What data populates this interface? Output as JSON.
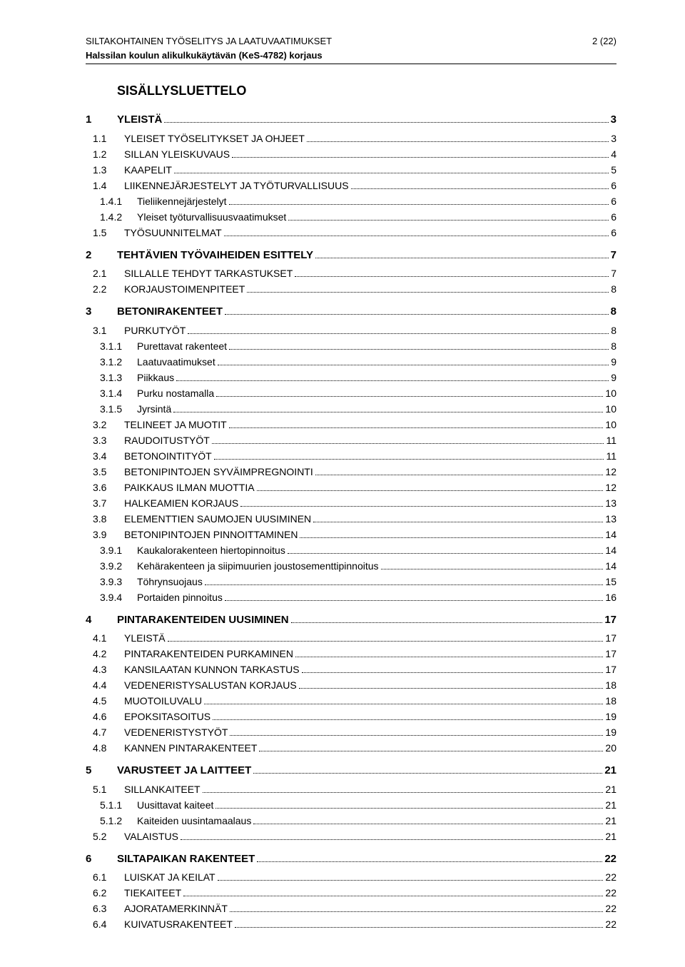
{
  "header": {
    "line1": "SILTAKOHTAINEN TYÖSELITYS JA LAATUVAATIMUKSET",
    "page": "2 (22)",
    "line2": "Halssilan koulun alikulkukäytävän (KeS-4782) korjaus"
  },
  "toc_title": "SISÄLLYSLUETTELO",
  "entries": [
    {
      "level": 1,
      "num": "1",
      "label": "YLEISTÄ",
      "page": "3"
    },
    {
      "level": 2,
      "num": "1.1",
      "label": "YLEISET TYÖSELITYKSET JA OHJEET",
      "smallcaps": true,
      "page": "3"
    },
    {
      "level": 2,
      "num": "1.2",
      "label": "SILLAN YLEISKUVAUS",
      "smallcaps": true,
      "page": "4"
    },
    {
      "level": 2,
      "num": "1.3",
      "label": "KAAPELIT",
      "smallcaps": true,
      "page": "5"
    },
    {
      "level": 2,
      "num": "1.4",
      "label": "LIIKENNEJÄRJESTELYT JA TYÖTURVALLISUUS",
      "smallcaps": true,
      "page": "6"
    },
    {
      "level": 3,
      "num": "1.4.1",
      "label": "Tieliikennejärjestelyt",
      "page": "6"
    },
    {
      "level": 3,
      "num": "1.4.2",
      "label": "Yleiset työturvallisuusvaatimukset",
      "page": "6"
    },
    {
      "level": 2,
      "num": "1.5",
      "label": "TYÖSUUNNITELMAT",
      "smallcaps": true,
      "page": "6"
    },
    {
      "level": 1,
      "num": "2",
      "label": "TEHTÄVIEN TYÖVAIHEIDEN ESITTELY",
      "page": "7"
    },
    {
      "level": 2,
      "num": "2.1",
      "label": "SILLALLE TEHDYT TARKASTUKSET",
      "smallcaps": true,
      "page": "7"
    },
    {
      "level": 2,
      "num": "2.2",
      "label": "KORJAUSTOIMENPITEET",
      "smallcaps": true,
      "page": "8"
    },
    {
      "level": 1,
      "num": "3",
      "label": "BETONIRAKENTEET",
      "page": "8"
    },
    {
      "level": 2,
      "num": "3.1",
      "label": "PURKUTYÖT",
      "smallcaps": true,
      "page": "8"
    },
    {
      "level": 3,
      "num": "3.1.1",
      "label": "Purettavat rakenteet",
      "page": "8"
    },
    {
      "level": 3,
      "num": "3.1.2",
      "label": "Laatuvaatimukset",
      "page": "9"
    },
    {
      "level": 3,
      "num": "3.1.3",
      "label": "Piikkaus",
      "page": "9"
    },
    {
      "level": 3,
      "num": "3.1.4",
      "label": "Purku nostamalla",
      "page": "10"
    },
    {
      "level": 3,
      "num": "3.1.5",
      "label": "Jyrsintä",
      "page": "10"
    },
    {
      "level": 2,
      "num": "3.2",
      "label": "TELINEET JA MUOTIT",
      "smallcaps": true,
      "page": "10"
    },
    {
      "level": 2,
      "num": "3.3",
      "label": "RAUDOITUSTYÖT",
      "smallcaps": true,
      "page": "11"
    },
    {
      "level": 2,
      "num": "3.4",
      "label": "BETONOINTITYÖT",
      "smallcaps": true,
      "page": "11"
    },
    {
      "level": 2,
      "num": "3.5",
      "label": "BETONIPINTOJEN SYVÄIMPREGNOINTI",
      "smallcaps": true,
      "page": "12"
    },
    {
      "level": 2,
      "num": "3.6",
      "label": "PAIKKAUS ILMAN MUOTTIA",
      "smallcaps": true,
      "page": "12"
    },
    {
      "level": 2,
      "num": "3.7",
      "label": "HALKEAMIEN KORJAUS",
      "smallcaps": true,
      "page": "13"
    },
    {
      "level": 2,
      "num": "3.8",
      "label": "ELEMENTTIEN SAUMOJEN UUSIMINEN",
      "smallcaps": true,
      "page": "13"
    },
    {
      "level": 2,
      "num": "3.9",
      "label": "BETONIPINTOJEN PINNOITTAMINEN",
      "smallcaps": true,
      "page": "14"
    },
    {
      "level": 3,
      "num": "3.9.1",
      "label": "Kaukalorakenteen hiertopinnoitus",
      "page": "14"
    },
    {
      "level": 3,
      "num": "3.9.2",
      "label": "Kehärakenteen ja siipimuurien joustosementtipinnoitus",
      "page": "14"
    },
    {
      "level": 3,
      "num": "3.9.3",
      "label": "Töhrynsuojaus",
      "page": "15"
    },
    {
      "level": 3,
      "num": "3.9.4",
      "label": "Portaiden pinnoitus",
      "page": "16"
    },
    {
      "level": 1,
      "num": "4",
      "label": "PINTARAKENTEIDEN UUSIMINEN",
      "page": "17"
    },
    {
      "level": 2,
      "num": "4.1",
      "label": "YLEISTÄ",
      "smallcaps": true,
      "page": "17"
    },
    {
      "level": 2,
      "num": "4.2",
      "label": "PINTARAKENTEIDEN PURKAMINEN",
      "smallcaps": true,
      "page": "17"
    },
    {
      "level": 2,
      "num": "4.3",
      "label": "KANSILAATAN KUNNON TARKASTUS",
      "smallcaps": true,
      "page": "17"
    },
    {
      "level": 2,
      "num": "4.4",
      "label": "VEDENERISTYSALUSTAN KORJAUS",
      "smallcaps": true,
      "page": "18"
    },
    {
      "level": 2,
      "num": "4.5",
      "label": "MUOTOILUVALU",
      "smallcaps": true,
      "page": "18"
    },
    {
      "level": 2,
      "num": "4.6",
      "label": "EPOKSITASOITUS",
      "smallcaps": true,
      "page": "19"
    },
    {
      "level": 2,
      "num": "4.7",
      "label": "VEDENERISTYSTYÖT",
      "smallcaps": true,
      "page": "19"
    },
    {
      "level": 2,
      "num": "4.8",
      "label": "KANNEN PINTARAKENTEET",
      "smallcaps": true,
      "page": "20"
    },
    {
      "level": 1,
      "num": "5",
      "label": "VARUSTEET JA LAITTEET",
      "page": "21"
    },
    {
      "level": 2,
      "num": "5.1",
      "label": "SILLANKAITEET",
      "smallcaps": true,
      "page": "21"
    },
    {
      "level": 3,
      "num": "5.1.1",
      "label": "Uusittavat kaiteet",
      "page": "21"
    },
    {
      "level": 3,
      "num": "5.1.2",
      "label": "Kaiteiden uusintamaalaus",
      "page": "21"
    },
    {
      "level": 2,
      "num": "5.2",
      "label": "VALAISTUS",
      "smallcaps": true,
      "page": "21"
    },
    {
      "level": 1,
      "num": "6",
      "label": "SILTAPAIKAN RAKENTEET",
      "page": "22"
    },
    {
      "level": 2,
      "num": "6.1",
      "label": "LUISKAT JA KEILAT",
      "smallcaps": true,
      "page": "22"
    },
    {
      "level": 2,
      "num": "6.2",
      "label": "TIEKAITEET",
      "smallcaps": true,
      "page": "22"
    },
    {
      "level": 2,
      "num": "6.3",
      "label": "AJORATAMERKINNÄT",
      "smallcaps": true,
      "page": "22"
    },
    {
      "level": 2,
      "num": "6.4",
      "label": "KUIVATUSRAKENTEET",
      "smallcaps": true,
      "page": "22"
    }
  ]
}
